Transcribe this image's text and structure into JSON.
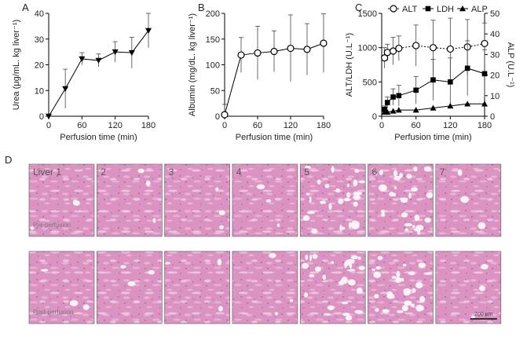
{
  "chart_data": [
    {
      "type": "line",
      "panel": "A",
      "xlabel": "Perfusion time (min)",
      "ylabel": "Urea (μg/mL. kg liver⁻¹)",
      "xlim": [
        0,
        180
      ],
      "xticks": [
        0,
        60,
        120,
        180
      ],
      "ylim": [
        0,
        40
      ],
      "yticks": [
        0,
        10,
        20,
        30,
        40
      ],
      "series": [
        {
          "color": "#000000",
          "marker": "triangle-down",
          "linestyle": "solid",
          "x": [
            0,
            30,
            60,
            90,
            120,
            150,
            180
          ],
          "values": [
            0,
            10.7,
            22.3,
            21.7,
            25,
            24.7,
            33.3
          ],
          "errors": [
            0,
            7.6,
            2.4,
            2.5,
            4,
            6,
            6.7
          ]
        }
      ]
    },
    {
      "type": "line",
      "panel": "B",
      "xlabel": "Perfusion time (min)",
      "ylabel": "Albumin (mg/dL. kg liver⁻¹)",
      "xlim": [
        0,
        180
      ],
      "xticks": [
        0,
        60,
        120,
        180
      ],
      "ylim": [
        0,
        200
      ],
      "yticks": [
        0,
        50,
        100,
        150,
        200
      ],
      "series": [
        {
          "color": "#000000",
          "marker": "circle-open",
          "linestyle": "solid",
          "x": [
            0,
            30,
            60,
            90,
            120,
            150,
            180
          ],
          "values": [
            3,
            119,
            123,
            126,
            132,
            130,
            142
          ],
          "errors": [
            20,
            34,
            52,
            40,
            65,
            50,
            57
          ]
        }
      ]
    },
    {
      "type": "line",
      "panel": "C",
      "xlabel": "Perfusion time (min)",
      "ylabel": "ALT/LDH (U.L⁻¹)",
      "y2label": "ALP (U.L⁻¹)",
      "xlim": [
        0,
        180
      ],
      "xticks": [
        0,
        60,
        120,
        180
      ],
      "ylim": [
        0,
        1500
      ],
      "yticks": [
        0,
        500,
        1000,
        1500
      ],
      "y2lim": [
        0,
        50
      ],
      "y2ticks": [
        0,
        10,
        20,
        30,
        40,
        50
      ],
      "legend": "top",
      "series": [
        {
          "name": "ALT",
          "color": "#000000",
          "marker": "circle-open",
          "linestyle": "dotted",
          "x": [
            5,
            10,
            20,
            30,
            60,
            90,
            120,
            150,
            180
          ],
          "values": [
            850,
            930,
            950,
            990,
            1030,
            1000,
            980,
            1010,
            1060
          ],
          "errors": [
            150,
            120,
            200,
            180,
            300,
            400,
            450,
            400,
            300
          ]
        },
        {
          "name": "LDH",
          "color": "#000000",
          "marker": "square",
          "linestyle": "solid",
          "x": [
            5,
            10,
            20,
            30,
            60,
            90,
            120,
            150,
            180
          ],
          "values": [
            100,
            200,
            280,
            300,
            380,
            530,
            500,
            700,
            620
          ],
          "errors": [
            50,
            80,
            120,
            150,
            200,
            300,
            350,
            400,
            350
          ]
        },
        {
          "name": "ALP",
          "color": "#000000",
          "marker": "triangle",
          "linestyle": "solid",
          "axis": "y2",
          "x": [
            5,
            10,
            20,
            30,
            60,
            90,
            120,
            150,
            180
          ],
          "values": [
            2,
            2,
            2.5,
            3,
            3,
            4,
            5,
            6,
            6
          ]
        }
      ]
    }
  ],
  "histology": {
    "panel": "D",
    "columns": [
      "Liver 1",
      "2",
      "3",
      "4",
      "5",
      "6",
      "7"
    ],
    "rows": [
      "Pre-perfusion",
      "Post-perfusion"
    ],
    "scale_bar": "200 μm"
  }
}
